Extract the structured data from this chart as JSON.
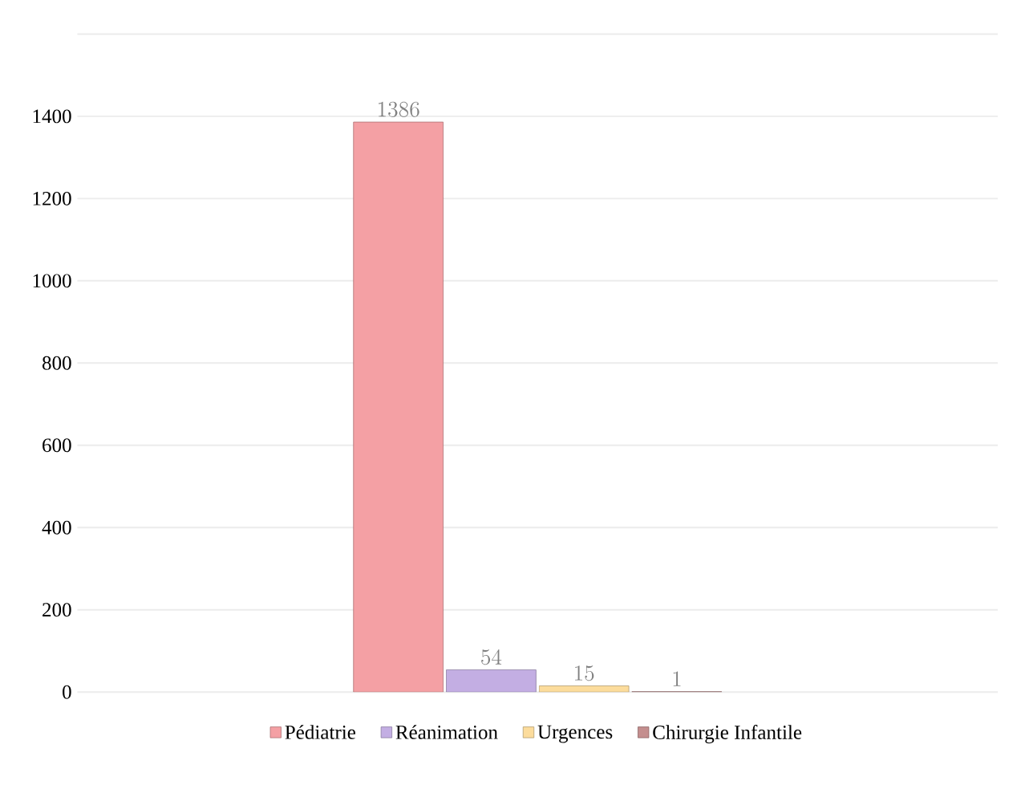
{
  "chart_data": {
    "type": "bar",
    "categories": [
      null
    ],
    "series": [
      {
        "name": "Pédiatrie",
        "color": "#f4a0a4",
        "values": [
          1386
        ]
      },
      {
        "name": "Réanimation",
        "color": "#c3aee3",
        "values": [
          54
        ]
      },
      {
        "name": "Urgences",
        "color": "#fcdc9c",
        "values": [
          15
        ]
      },
      {
        "name": "Chirurgie Infantile",
        "color": "#c48e8e",
        "values": [
          1
        ]
      }
    ],
    "ylim": [
      0,
      1600
    ],
    "yticks": [
      0,
      200,
      400,
      600,
      800,
      1000,
      1200,
      1400,
      {
        "value": 1600,
        "label": null
      }
    ],
    "grid": "y",
    "legend": "bottom",
    "data_labels": true,
    "tick_labels": "y"
  }
}
